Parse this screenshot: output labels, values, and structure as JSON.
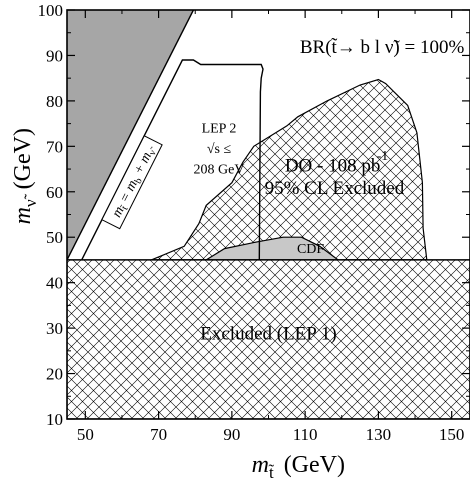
{
  "chart_data": {
    "type": "area",
    "xlabel": "m",
    "xlabel_sub": "t̃",
    "xlabel_unit": "(GeV)",
    "ylabel": "m",
    "ylabel_sub": "ν̃",
    "ylabel_unit": "(GeV)",
    "xlim": [
      45,
      155
    ],
    "ylim": [
      10,
      100
    ],
    "x_ticks": [
      50,
      70,
      90,
      110,
      130,
      150
    ],
    "y_ticks": [
      10,
      20,
      30,
      40,
      50,
      60,
      70,
      80,
      90,
      100
    ],
    "grid": false,
    "regions": [
      {
        "id": "kinematic-forbidden",
        "fill": "#a6a6a6",
        "hatch": false,
        "points": [
          [
            45,
            45
          ],
          [
            45,
            100
          ],
          [
            79.5,
            100
          ]
        ]
      },
      {
        "id": "d0-excluded",
        "fill": "crosshatch",
        "hatch": true,
        "points": [
          [
            68,
            45
          ],
          [
            71,
            46
          ],
          [
            77,
            48
          ],
          [
            81,
            53
          ],
          [
            83,
            57
          ],
          [
            90,
            62
          ],
          [
            93,
            66.5
          ],
          [
            96,
            70
          ],
          [
            105,
            74.5
          ],
          [
            108,
            76.5
          ],
          [
            116,
            80
          ],
          [
            125,
            83.5
          ],
          [
            130,
            84.7
          ],
          [
            132,
            83.8
          ],
          [
            138,
            79
          ],
          [
            140.5,
            73
          ],
          [
            142,
            62
          ],
          [
            142.2,
            52
          ],
          [
            143.2,
            45
          ]
        ]
      },
      {
        "id": "cdf-excluded",
        "fill": "#c8c8c8",
        "hatch": false,
        "points": [
          [
            83,
            45
          ],
          [
            88,
            47.5
          ],
          [
            97,
            49
          ],
          [
            104,
            50
          ],
          [
            109,
            50
          ],
          [
            114,
            48
          ],
          [
            119,
            45
          ]
        ]
      },
      {
        "id": "lep1-excluded",
        "fill": "crosshatch",
        "hatch": true,
        "points": [
          [
            45,
            10
          ],
          [
            155,
            10
          ],
          [
            155,
            45
          ],
          [
            45,
            45
          ]
        ]
      }
    ],
    "lines": [
      {
        "id": "kinematic-limit",
        "points": [
          [
            45,
            45
          ],
          [
            79.5,
            100
          ]
        ]
      },
      {
        "id": "lep2-boundary",
        "points": [
          [
            49,
            45
          ],
          [
            76.5,
            89
          ],
          [
            79.5,
            89
          ],
          [
            81.5,
            88
          ],
          [
            98,
            88
          ],
          [
            98.5,
            87
          ],
          [
            98,
            85
          ],
          [
            97.8,
            82
          ],
          [
            97.5,
            45
          ]
        ]
      }
    ],
    "annotations": [
      {
        "id": "br-label",
        "text": "BR(t̃→ b l ν̃) = 100%",
        "x": 131,
        "y": 90.5
      },
      {
        "id": "lep2-line1",
        "text": "LEP 2",
        "x": 86.5,
        "y": 73
      },
      {
        "id": "lep2-line2",
        "text": "√s ≤",
        "x": 86.5,
        "y": 68.5
      },
      {
        "id": "lep2-line3",
        "text": "208 GeV",
        "x": 86.5,
        "y": 64
      },
      {
        "id": "d0-line1",
        "text": "DØ - 108 pb",
        "x": 117.5,
        "y": 64.5
      },
      {
        "id": "d0-sup",
        "text": "-1",
        "x": 129.5,
        "y": 67
      },
      {
        "id": "d0-line2",
        "text": "95% CL Excluded",
        "x": 118,
        "y": 59.5
      },
      {
        "id": "cdf-label",
        "text": "CDF",
        "x": 111.5,
        "y": 46.5
      },
      {
        "id": "lep1-label",
        "text": "Excluded (LEP 1)",
        "x": 100,
        "y": 27.5
      },
      {
        "id": "kin-label",
        "text": "m",
        "x": 63,
        "y": 62
      }
    ],
    "kinematic_label_parts": {
      "m1": "m",
      "s1": "t̃",
      "eq": " = m",
      "s2": "b",
      "plus": " + m",
      "s3": "ν̃"
    }
  }
}
